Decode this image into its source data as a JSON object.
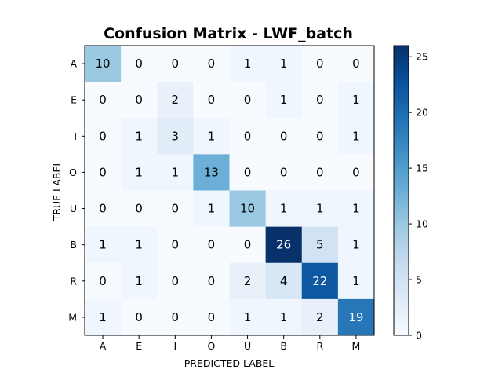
{
  "chart_data": {
    "type": "heatmap",
    "title": "Confusion Matrix - LWF_batch",
    "xlabel": "PREDICTED LABEL",
    "ylabel": "TRUE LABEL",
    "x_categories": [
      "A",
      "E",
      "I",
      "O",
      "U",
      "B",
      "R",
      "M"
    ],
    "y_categories": [
      "A",
      "E",
      "I",
      "O",
      "U",
      "B",
      "R",
      "M"
    ],
    "matrix": [
      [
        10,
        0,
        0,
        0,
        1,
        1,
        0,
        0
      ],
      [
        0,
        0,
        2,
        0,
        0,
        1,
        0,
        1
      ],
      [
        0,
        1,
        3,
        1,
        0,
        0,
        0,
        1
      ],
      [
        0,
        1,
        1,
        13,
        0,
        0,
        0,
        0
      ],
      [
        0,
        0,
        0,
        1,
        10,
        1,
        1,
        1
      ],
      [
        1,
        1,
        0,
        0,
        0,
        26,
        5,
        1
      ],
      [
        0,
        1,
        0,
        0,
        2,
        4,
        22,
        1
      ],
      [
        1,
        0,
        0,
        0,
        1,
        1,
        2,
        19
      ]
    ],
    "colormap": "Blues",
    "vmin": 0,
    "vmax": 26,
    "colorbar_ticks": [
      0,
      5,
      10,
      15,
      20,
      25
    ],
    "text_color_light": "#ffffff",
    "text_color_dark": "#000000"
  }
}
